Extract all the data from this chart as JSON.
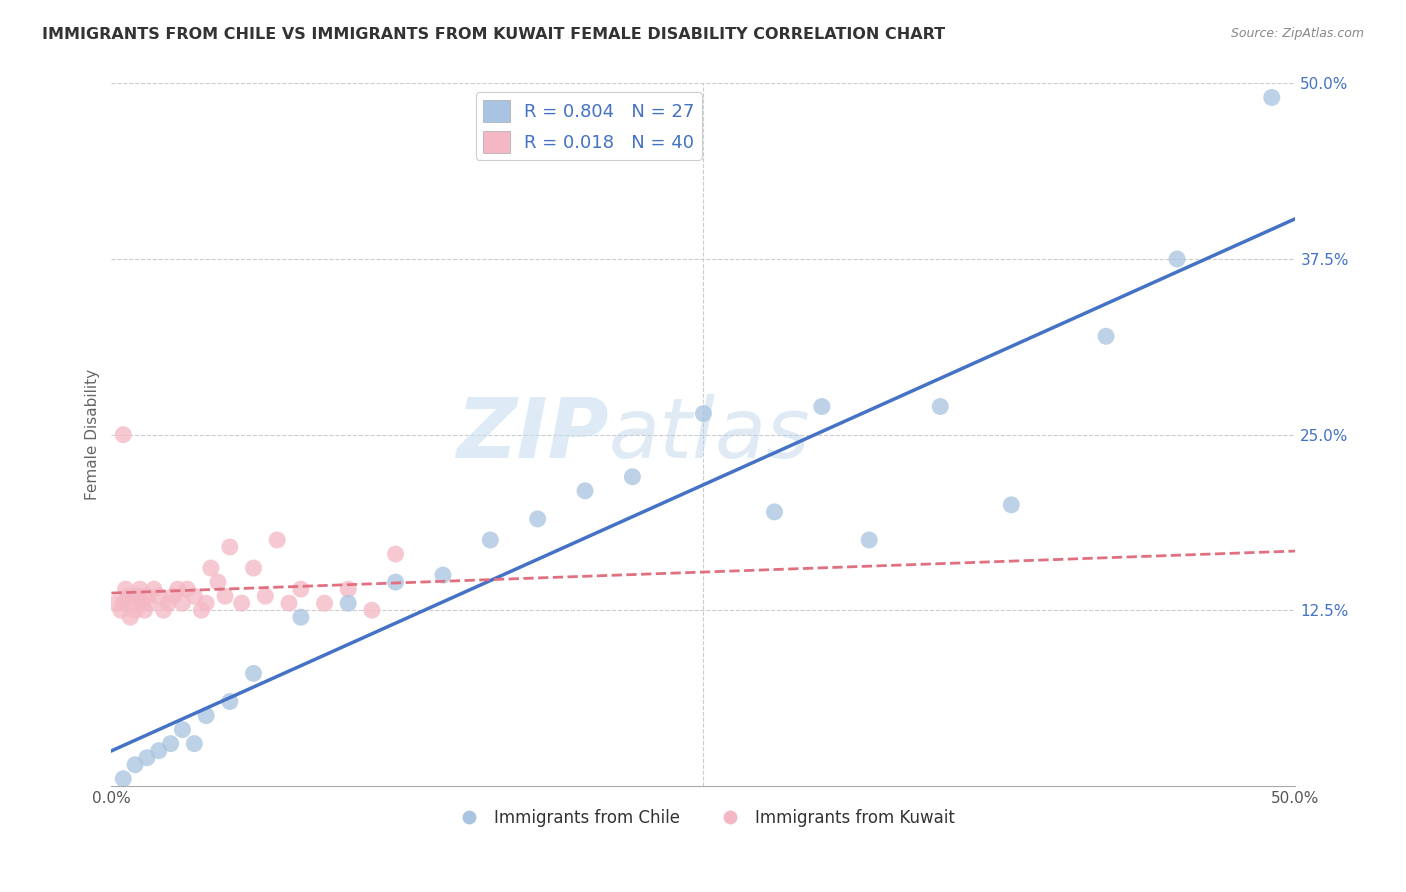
{
  "title": "IMMIGRANTS FROM CHILE VS IMMIGRANTS FROM KUWAIT FEMALE DISABILITY CORRELATION CHART",
  "source": "Source: ZipAtlas.com",
  "ylabel": "Female Disability",
  "xlim": [
    0,
    0.5
  ],
  "ylim": [
    0,
    0.5
  ],
  "watermark_zip": "ZIP",
  "watermark_atlas": "atlas",
  "chile_color": "#a8c4e0",
  "kuwait_color": "#f4b8c4",
  "chile_line_color": "#4472c4",
  "kuwait_line_color": "#e07080",
  "legend_chile_R": "0.804",
  "legend_chile_N": "27",
  "legend_kuwait_R": "0.018",
  "legend_kuwait_N": "40",
  "chile_scatter_x": [
    0.005,
    0.01,
    0.015,
    0.02,
    0.025,
    0.03,
    0.035,
    0.04,
    0.05,
    0.06,
    0.08,
    0.1,
    0.12,
    0.14,
    0.16,
    0.18,
    0.2,
    0.22,
    0.25,
    0.28,
    0.3,
    0.32,
    0.35,
    0.38,
    0.42,
    0.45,
    0.49
  ],
  "chile_scatter_y": [
    0.005,
    0.015,
    0.02,
    0.025,
    0.03,
    0.04,
    0.03,
    0.05,
    0.06,
    0.08,
    0.12,
    0.13,
    0.145,
    0.15,
    0.175,
    0.19,
    0.21,
    0.22,
    0.265,
    0.195,
    0.27,
    0.175,
    0.27,
    0.2,
    0.32,
    0.375,
    0.49
  ],
  "kuwait_scatter_x": [
    0.002,
    0.004,
    0.005,
    0.006,
    0.007,
    0.008,
    0.009,
    0.01,
    0.011,
    0.012,
    0.013,
    0.014,
    0.015,
    0.016,
    0.018,
    0.02,
    0.022,
    0.024,
    0.026,
    0.028,
    0.03,
    0.032,
    0.035,
    0.038,
    0.04,
    0.042,
    0.045,
    0.048,
    0.05,
    0.055,
    0.06,
    0.065,
    0.07,
    0.075,
    0.08,
    0.09,
    0.1,
    0.11,
    0.12,
    0.005
  ],
  "kuwait_scatter_y": [
    0.13,
    0.125,
    0.13,
    0.14,
    0.135,
    0.12,
    0.13,
    0.125,
    0.135,
    0.14,
    0.13,
    0.125,
    0.135,
    0.13,
    0.14,
    0.135,
    0.125,
    0.13,
    0.135,
    0.14,
    0.13,
    0.14,
    0.135,
    0.125,
    0.13,
    0.155,
    0.145,
    0.135,
    0.17,
    0.13,
    0.155,
    0.135,
    0.175,
    0.13,
    0.14,
    0.13,
    0.14,
    0.125,
    0.165,
    0.25
  ]
}
